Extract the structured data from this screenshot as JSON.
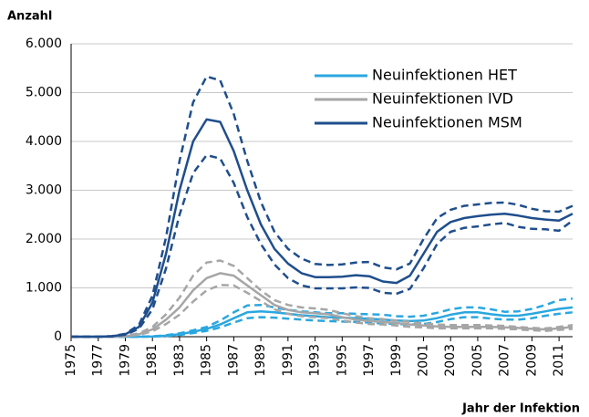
{
  "chart_data": {
    "type": "line",
    "y_label": "Anzahl",
    "x_label": "Jahr der Infektion",
    "x": [
      1975,
      1976,
      1977,
      1978,
      1979,
      1980,
      1981,
      1982,
      1983,
      1984,
      1985,
      1986,
      1987,
      1988,
      1989,
      1990,
      1991,
      1992,
      1993,
      1994,
      1995,
      1996,
      1997,
      1998,
      1999,
      2000,
      2001,
      2002,
      2003,
      2004,
      2005,
      2006,
      2007,
      2008,
      2009,
      2010,
      2011,
      2012
    ],
    "xlim": [
      1975,
      2012
    ],
    "xticks": [
      1975,
      1977,
      1979,
      1981,
      1983,
      1985,
      1987,
      1989,
      1991,
      1993,
      1995,
      1997,
      1999,
      2001,
      2003,
      2005,
      2007,
      2009,
      2011
    ],
    "ylim": [
      0,
      6000
    ],
    "yticks": [
      0,
      {
        "value": 1000,
        "label": "1.000"
      },
      {
        "value": 2000,
        "label": "2.000"
      },
      {
        "value": 3000,
        "label": "3.000"
      },
      {
        "value": 4000,
        "label": "4.000"
      },
      {
        "value": 5000,
        "label": "5.000"
      },
      {
        "value": 6000,
        "label": "6.000"
      }
    ],
    "grid": true,
    "legend": "top-right",
    "series": [
      {
        "name": "Neuinfektionen HET",
        "color": "#2aa7df",
        "values": [
          0,
          0,
          0,
          0,
          0,
          0,
          5,
          20,
          50,
          100,
          160,
          250,
          380,
          500,
          520,
          500,
          470,
          440,
          420,
          400,
          390,
          380,
          370,
          350,
          330,
          320,
          330,
          380,
          450,
          500,
          500,
          460,
          430,
          430,
          470,
          520,
          570,
          600
        ],
        "upper": [
          0,
          0,
          0,
          0,
          0,
          0,
          8,
          30,
          70,
          130,
          200,
          330,
          500,
          640,
          650,
          600,
          550,
          520,
          500,
          480,
          480,
          470,
          460,
          450,
          420,
          410,
          430,
          490,
          560,
          600,
          600,
          560,
          510,
          520,
          570,
          650,
          750,
          780
        ],
        "lower": [
          0,
          0,
          0,
          0,
          0,
          0,
          3,
          14,
          35,
          75,
          120,
          190,
          290,
          380,
          400,
          390,
          370,
          350,
          330,
          320,
          310,
          300,
          290,
          270,
          260,
          250,
          260,
          300,
          360,
          400,
          400,
          370,
          350,
          350,
          380,
          430,
          470,
          500
        ]
      },
      {
        "name": "Neuinfektionen IVD",
        "color": "#a6a6a6",
        "values": [
          0,
          0,
          0,
          0,
          10,
          50,
          150,
          350,
          600,
          950,
          1200,
          1300,
          1250,
          1050,
          850,
          650,
          550,
          500,
          480,
          460,
          400,
          350,
          320,
          300,
          280,
          250,
          230,
          210,
          200,
          200,
          200,
          200,
          190,
          180,
          160,
          150,
          170,
          200
        ],
        "upper": [
          0,
          0,
          0,
          0,
          15,
          70,
          200,
          460,
          800,
          1250,
          1520,
          1560,
          1450,
          1200,
          950,
          750,
          650,
          600,
          580,
          550,
          480,
          420,
          380,
          360,
          330,
          300,
          270,
          250,
          240,
          240,
          240,
          230,
          220,
          200,
          180,
          170,
          200,
          240
        ],
        "lower": [
          0,
          0,
          0,
          0,
          8,
          35,
          110,
          260,
          450,
          720,
          950,
          1060,
          1050,
          900,
          730,
          560,
          470,
          420,
          400,
          380,
          330,
          290,
          260,
          250,
          230,
          200,
          190,
          170,
          170,
          170,
          170,
          170,
          160,
          150,
          130,
          120,
          140,
          160
        ]
      },
      {
        "name": "Neuinfektionen MSM",
        "color": "#1f4e8c",
        "values": [
          0,
          0,
          0,
          10,
          50,
          200,
          700,
          1700,
          3000,
          4000,
          4450,
          4400,
          3800,
          3000,
          2300,
          1800,
          1500,
          1300,
          1220,
          1220,
          1230,
          1260,
          1240,
          1130,
          1100,
          1250,
          1700,
          2150,
          2350,
          2430,
          2470,
          2500,
          2520,
          2480,
          2430,
          2400,
          2380,
          2520
        ],
        "upper": [
          0,
          0,
          0,
          12,
          60,
          240,
          840,
          2040,
          3600,
          4800,
          5330,
          5250,
          4560,
          3600,
          2760,
          2150,
          1800,
          1600,
          1490,
          1470,
          1480,
          1520,
          1530,
          1420,
          1380,
          1500,
          2000,
          2430,
          2600,
          2680,
          2710,
          2740,
          2750,
          2700,
          2620,
          2570,
          2560,
          2680
        ],
        "lower": [
          0,
          0,
          0,
          8,
          40,
          160,
          560,
          1400,
          2500,
          3350,
          3720,
          3650,
          3150,
          2450,
          1900,
          1480,
          1200,
          1050,
          990,
          990,
          990,
          1010,
          1000,
          900,
          880,
          980,
          1400,
          1900,
          2150,
          2230,
          2260,
          2300,
          2330,
          2250,
          2210,
          2200,
          2170,
          2380
        ]
      }
    ]
  }
}
